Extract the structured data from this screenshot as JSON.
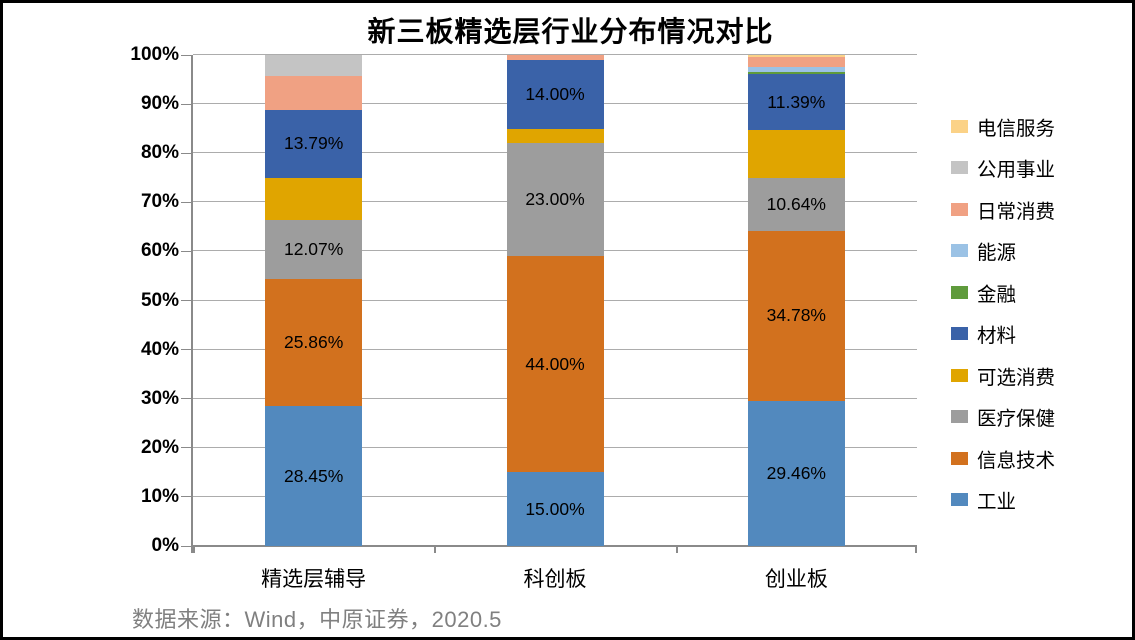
{
  "frame": {
    "title": "新三板精选层行业分布情况对比",
    "source_note": "数据来源：Wind，中原证券，2020.5"
  },
  "chart_data": {
    "type": "bar",
    "variant": "stacked-100-percent-column",
    "title": "新三板精选层行业分布情况对比",
    "categories": [
      "精选层辅导",
      "科创板",
      "创业板"
    ],
    "series": [
      {
        "name": "工业",
        "color": "#5289be",
        "values": [
          28.45,
          15.0,
          29.46
        ],
        "labeled": true
      },
      {
        "name": "信息技术",
        "color": "#d2711e",
        "values": [
          25.86,
          44.0,
          34.78
        ],
        "labeled": true
      },
      {
        "name": "医疗保健",
        "color": "#9d9d9d",
        "values": [
          12.07,
          23.0,
          10.64
        ],
        "labeled": true
      },
      {
        "name": "可选消费",
        "color": "#e0a500",
        "values": [
          8.62,
          3.0,
          9.8
        ],
        "labeled": false
      },
      {
        "name": "材料",
        "color": "#3a62a8",
        "values": [
          13.79,
          14.0,
          11.39
        ],
        "labeled": true
      },
      {
        "name": "金融",
        "color": "#5f9b3c",
        "values": [
          0,
          0,
          0.5
        ],
        "labeled": false
      },
      {
        "name": "能源",
        "color": "#9bc2e5",
        "values": [
          0,
          0,
          1.0
        ],
        "labeled": false
      },
      {
        "name": "日常消费",
        "color": "#f0a183",
        "values": [
          6.9,
          1.0,
          2.1
        ],
        "labeled": false
      },
      {
        "name": "公用事业",
        "color": "#c4c4c4",
        "values": [
          4.31,
          0,
          0
        ],
        "labeled": false
      },
      {
        "name": "电信服务",
        "color": "#fbd287",
        "values": [
          0,
          0,
          0.33
        ],
        "labeled": false
      }
    ],
    "shown_data_labels": {
      "精选层辅导": {
        "工业": "28.45%",
        "信息技术": "25.86%",
        "医疗保健": "12.07%",
        "材料": "13.79%"
      },
      "科创板": {
        "工业": "15.00%",
        "信息技术": "44.00%",
        "医疗保健": "23.00%",
        "材料": "14.00%"
      },
      "创业板": {
        "工业": "29.46%",
        "信息技术": "34.78%",
        "医疗保健": "10.64%",
        "材料": "11.39%"
      }
    },
    "y_tick_labels": [
      "0%",
      "10%",
      "20%",
      "30%",
      "40%",
      "50%",
      "60%",
      "70%",
      "80%",
      "90%",
      "100%"
    ],
    "ylim": [
      0,
      100
    ],
    "grid": true,
    "legend_position": "right",
    "legend_order_top_to_bottom": [
      "电信服务",
      "公用事业",
      "日常消费",
      "能源",
      "金融",
      "材料",
      "可选消费",
      "医疗保健",
      "信息技术",
      "工业"
    ]
  }
}
